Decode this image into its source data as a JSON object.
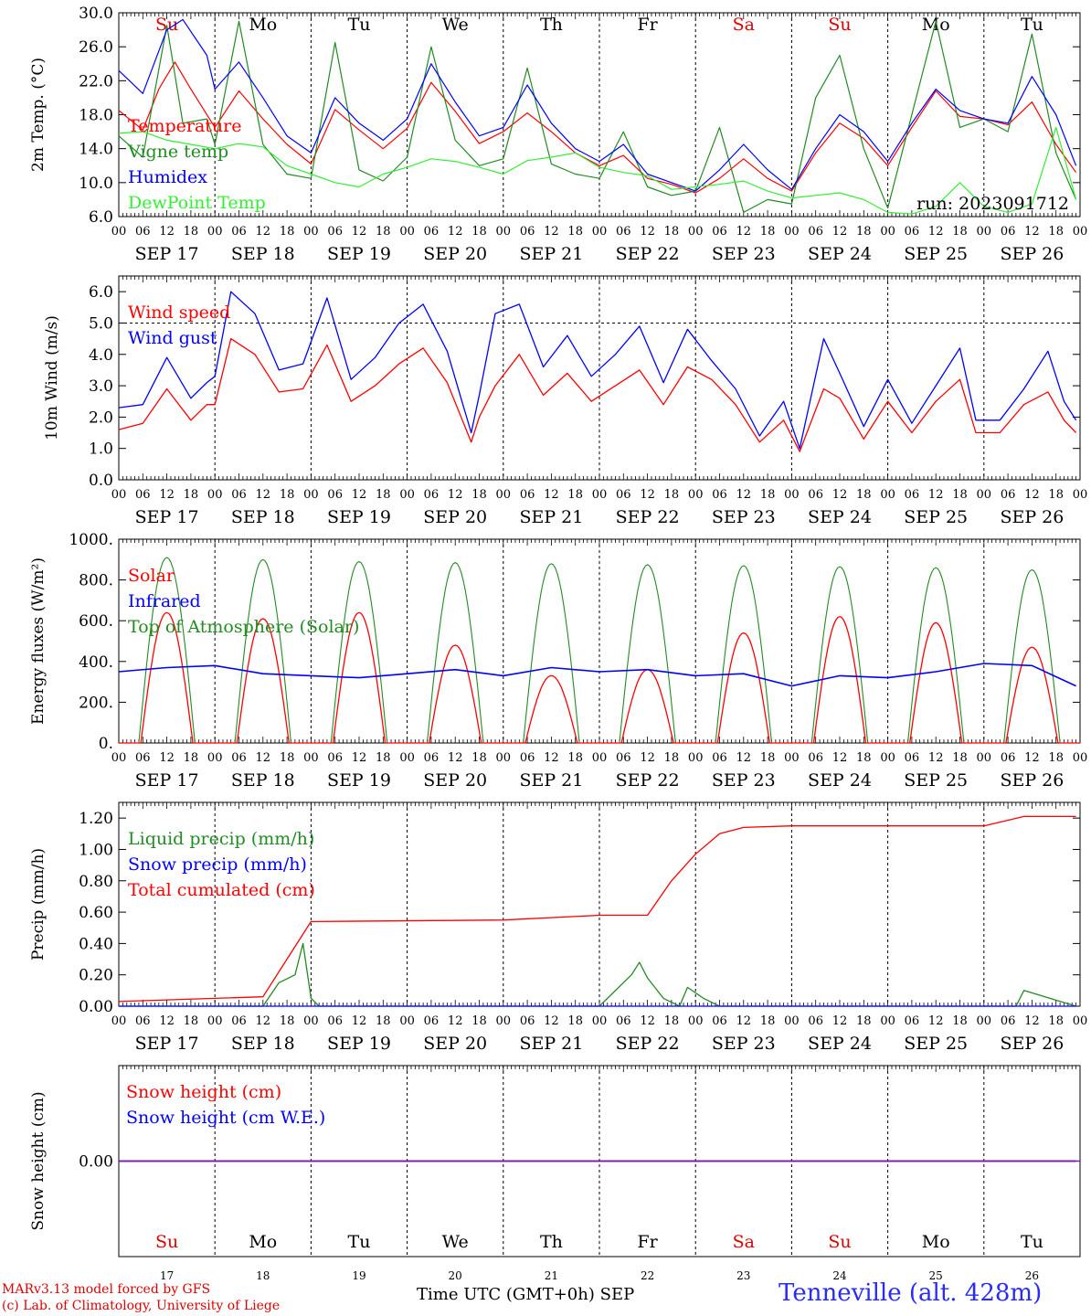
{
  "chart_data": [
    {
      "type": "line",
      "ylabel": "2m Temp. (°C)",
      "ylim": [
        6.0,
        30.0
      ],
      "yticks": [
        "6.0",
        "10.0",
        "14.0",
        "18.0",
        "22.0",
        "26.0",
        "30.0"
      ],
      "hours": [
        "00",
        "06",
        "12",
        "18"
      ],
      "dates": [
        "SEP 17",
        "SEP 18",
        "SEP 19",
        "SEP 20",
        "SEP 21",
        "SEP 22",
        "SEP 23",
        "SEP 24",
        "SEP 25",
        "SEP 26"
      ],
      "weekdays": [
        "Su",
        "Mo",
        "Tu",
        "We",
        "Th",
        "Fr",
        "Sa",
        "Su",
        "Mo",
        "Tu"
      ],
      "weekday_colors": [
        "#e00000",
        "#000000",
        "#000000",
        "#000000",
        "#000000",
        "#000000",
        "#e00000",
        "#e00000",
        "#000000",
        "#000000"
      ],
      "annotation": "run: 2023091712",
      "x_unit": "hours since 2023-09-17 00 UTC",
      "series": [
        {
          "name": "Temperature",
          "color": "#ff0000",
          "x": [
            0,
            6,
            10,
            14,
            18,
            24,
            30,
            36,
            42,
            48,
            54,
            60,
            66,
            72,
            78,
            84,
            90,
            96,
            102,
            108,
            114,
            120,
            126,
            132,
            138,
            144,
            150,
            156,
            162,
            168,
            174,
            180,
            186,
            192,
            198,
            204,
            210,
            216,
            222,
            228,
            234,
            239
          ],
          "values": [
            18.5,
            16.2,
            21.0,
            24.2,
            21.0,
            16.5,
            20.8,
            17.5,
            14.5,
            12.2,
            18.6,
            16.2,
            14.0,
            16.4,
            21.8,
            18.4,
            14.6,
            16.0,
            18.2,
            16.0,
            13.5,
            12.0,
            13.2,
            10.5,
            9.8,
            8.8,
            10.5,
            12.8,
            10.5,
            9.0,
            13.5,
            17.0,
            15.2,
            12.0,
            16.5,
            20.8,
            17.8,
            17.5,
            16.8,
            19.5,
            14.5,
            11.2
          ]
        },
        {
          "name": "Vigne temp",
          "color": "#228b22",
          "x": [
            0,
            6,
            12,
            16,
            22,
            24,
            30,
            36,
            42,
            48,
            54,
            60,
            66,
            72,
            78,
            84,
            90,
            96,
            102,
            108,
            114,
            120,
            126,
            132,
            138,
            144,
            150,
            156,
            162,
            168,
            174,
            180,
            186,
            192,
            198,
            204,
            210,
            216,
            222,
            228,
            234,
            239
          ],
          "values": [
            15.5,
            13.0,
            28.5,
            17.0,
            17.5,
            14.5,
            29.0,
            14.5,
            11.0,
            10.5,
            26.5,
            11.5,
            10.2,
            13.0,
            26.0,
            15.0,
            12.0,
            12.8,
            23.5,
            12.2,
            11.0,
            10.5,
            16.0,
            9.5,
            8.5,
            9.0,
            16.5,
            6.5,
            8.0,
            7.5,
            20.0,
            25.0,
            14.0,
            7.0,
            18.0,
            29.0,
            16.5,
            17.5,
            16.0,
            27.5,
            13.5,
            8.0
          ]
        },
        {
          "name": "Humidex",
          "color": "#0000ff",
          "x": [
            0,
            6,
            12,
            16,
            22,
            24,
            30,
            36,
            42,
            48,
            54,
            60,
            66,
            72,
            78,
            84,
            90,
            96,
            102,
            108,
            114,
            120,
            126,
            132,
            138,
            144,
            150,
            156,
            162,
            168,
            174,
            180,
            186,
            192,
            198,
            204,
            210,
            216,
            222,
            228,
            234,
            239
          ],
          "values": [
            23.2,
            20.5,
            28.0,
            29.2,
            25.0,
            21.0,
            24.2,
            20.0,
            15.5,
            13.5,
            20.0,
            17.0,
            15.0,
            17.5,
            24.0,
            19.5,
            15.5,
            16.5,
            21.5,
            17.0,
            14.0,
            12.5,
            14.5,
            11.0,
            10.0,
            9.0,
            11.5,
            14.5,
            11.5,
            9.2,
            14.0,
            18.0,
            16.0,
            12.5,
            17.0,
            21.0,
            18.5,
            17.5,
            17.0,
            22.5,
            18.0,
            12.0
          ]
        },
        {
          "name": "DewPoint Temp",
          "color": "#33ee33",
          "x": [
            0,
            6,
            12,
            18,
            24,
            30,
            36,
            42,
            48,
            54,
            60,
            66,
            72,
            78,
            84,
            90,
            96,
            102,
            108,
            114,
            120,
            126,
            132,
            138,
            144,
            150,
            156,
            162,
            168,
            174,
            180,
            186,
            192,
            198,
            204,
            210,
            216,
            222,
            228,
            234,
            239
          ],
          "values": [
            15.8,
            16.0,
            15.0,
            14.5,
            14.0,
            14.6,
            14.2,
            12.0,
            11.0,
            10.0,
            9.5,
            11.0,
            11.8,
            12.8,
            12.5,
            11.8,
            11.0,
            12.6,
            13.0,
            13.5,
            11.8,
            11.2,
            10.8,
            9.2,
            9.5,
            9.8,
            10.2,
            9.0,
            8.2,
            8.5,
            8.8,
            8.0,
            6.5,
            6.3,
            7.2,
            10.0,
            7.2,
            6.5,
            7.5,
            16.5,
            8.0
          ]
        }
      ]
    },
    {
      "type": "line",
      "ylabel": "10m Wind (m/s)",
      "ylim": [
        0.0,
        6.5
      ],
      "yticks": [
        "0.0",
        "1.0",
        "2.0",
        "3.0",
        "4.0",
        "5.0",
        "6.0"
      ],
      "reference_line": 5.0,
      "hours": [
        "00",
        "06",
        "12",
        "18"
      ],
      "dates": [
        "SEP 17",
        "SEP 18",
        "SEP 19",
        "SEP 20",
        "SEP 21",
        "SEP 22",
        "SEP 23",
        "SEP 24",
        "SEP 25",
        "SEP 26"
      ],
      "series": [
        {
          "name": "Wind speed",
          "color": "#ff0000",
          "x": [
            0,
            6,
            12,
            18,
            22,
            24,
            28,
            34,
            40,
            46,
            52,
            58,
            64,
            70,
            76,
            82,
            88,
            90,
            94,
            100,
            106,
            112,
            118,
            124,
            130,
            136,
            142,
            148,
            154,
            160,
            166,
            170,
            176,
            180,
            186,
            192,
            198,
            204,
            210,
            214,
            220,
            226,
            232,
            236,
            239
          ],
          "values": [
            1.6,
            1.8,
            2.9,
            1.9,
            2.4,
            2.4,
            4.5,
            4.0,
            2.8,
            2.9,
            4.3,
            2.5,
            3.0,
            3.7,
            4.2,
            3.1,
            1.2,
            2.0,
            3.0,
            4.0,
            2.7,
            3.4,
            2.5,
            3.0,
            3.5,
            2.4,
            3.6,
            3.2,
            2.4,
            1.2,
            1.9,
            0.9,
            2.9,
            2.6,
            1.3,
            2.5,
            1.5,
            2.5,
            3.2,
            1.5,
            1.5,
            2.4,
            2.8,
            1.9,
            1.5
          ]
        },
        {
          "name": "Wind gust",
          "color": "#0000ff",
          "x": [
            0,
            6,
            12,
            18,
            22,
            24,
            28,
            34,
            40,
            46,
            52,
            58,
            64,
            70,
            76,
            82,
            88,
            90,
            94,
            100,
            106,
            112,
            118,
            124,
            130,
            136,
            142,
            148,
            154,
            160,
            166,
            170,
            176,
            180,
            186,
            192,
            198,
            204,
            210,
            214,
            220,
            226,
            232,
            236,
            239
          ],
          "values": [
            2.3,
            2.4,
            3.9,
            2.6,
            3.1,
            3.3,
            6.0,
            5.3,
            3.5,
            3.7,
            5.8,
            3.2,
            3.9,
            5.0,
            5.6,
            4.1,
            1.5,
            2.7,
            5.3,
            5.6,
            3.6,
            4.6,
            3.3,
            4.0,
            4.9,
            3.1,
            4.8,
            3.8,
            2.9,
            1.4,
            2.5,
            1.0,
            4.5,
            3.4,
            1.7,
            3.2,
            1.8,
            3.0,
            4.2,
            1.9,
            1.9,
            2.9,
            4.1,
            2.5,
            1.9
          ]
        }
      ]
    },
    {
      "type": "line",
      "ylabel": "Energy fluxes (W/m²)",
      "ylim": [
        0,
        1000
      ],
      "yticks": [
        "0.",
        "200.",
        "400.",
        "600.",
        "800.",
        "1000."
      ],
      "hours": [
        "00",
        "06",
        "12",
        "18"
      ],
      "dates": [
        "SEP 17",
        "SEP 18",
        "SEP 19",
        "SEP 20",
        "SEP 21",
        "SEP 22",
        "SEP 23",
        "SEP 24",
        "SEP 25",
        "SEP 26"
      ],
      "daily_solar_peak": [
        640,
        610,
        640,
        480,
        330,
        360,
        540,
        620,
        590,
        470
      ],
      "daily_toa_peak": [
        910,
        900,
        890,
        885,
        880,
        875,
        870,
        865,
        860,
        850
      ],
      "series": [
        {
          "name": "Solar",
          "color": "#ff0000"
        },
        {
          "name": "Infrared",
          "color": "#0000ff",
          "x": [
            0,
            12,
            24,
            36,
            48,
            60,
            72,
            84,
            96,
            108,
            120,
            132,
            144,
            156,
            168,
            180,
            192,
            204,
            216,
            228,
            239
          ],
          "values": [
            350,
            370,
            380,
            340,
            330,
            320,
            340,
            360,
            330,
            370,
            350,
            360,
            330,
            340,
            280,
            330,
            320,
            350,
            390,
            380,
            280
          ]
        },
        {
          "name": "Top of Atmosphere (Solar)",
          "color": "#228b22"
        }
      ]
    },
    {
      "type": "line",
      "ylabel": "Precip (mm/h)",
      "ylim": [
        0.0,
        1.3
      ],
      "yticks": [
        "0.00",
        "0.20",
        "0.40",
        "0.60",
        "0.80",
        "1.00",
        "1.20"
      ],
      "hours": [
        "00",
        "06",
        "12",
        "18"
      ],
      "dates": [
        "SEP 17",
        "SEP 18",
        "SEP 19",
        "SEP 20",
        "SEP 21",
        "SEP 22",
        "SEP 23",
        "SEP 24",
        "SEP 25",
        "SEP 26"
      ],
      "series": [
        {
          "name": "Liquid precip (mm/h)",
          "color": "#228b22",
          "x": [
            0,
            36,
            40,
            44,
            46,
            48,
            50,
            120,
            122,
            128,
            130,
            132,
            136,
            140,
            142,
            146,
            150,
            224,
            226,
            239
          ],
          "values": [
            0.0,
            0.0,
            0.15,
            0.2,
            0.4,
            0.05,
            0.0,
            0.0,
            0.05,
            0.2,
            0.28,
            0.18,
            0.05,
            0.0,
            0.12,
            0.05,
            0.0,
            0.0,
            0.1,
            0.0
          ]
        },
        {
          "name": "Snow precip (mm/h)",
          "color": "#0000ff",
          "x": [
            0,
            239
          ],
          "values": [
            0.0,
            0.0
          ]
        },
        {
          "name": "Total cumulated (cm)",
          "color": "#ff0000",
          "x": [
            0,
            24,
            36,
            42,
            48,
            96,
            120,
            132,
            138,
            144,
            150,
            156,
            168,
            216,
            226,
            239
          ],
          "values": [
            0.03,
            0.05,
            0.06,
            0.3,
            0.54,
            0.55,
            0.58,
            0.58,
            0.8,
            0.97,
            1.1,
            1.14,
            1.15,
            1.15,
            1.21,
            1.21
          ]
        }
      ]
    },
    {
      "type": "line",
      "ylabel": "Snow height (cm)",
      "ylim": [
        -1.0,
        1.0
      ],
      "yticks": [
        "0.00"
      ],
      "weekdays": [
        "Su",
        "Mo",
        "Tu",
        "We",
        "Th",
        "Fr",
        "Sa",
        "Su",
        "Mo",
        "Tu"
      ],
      "weekday_colors": [
        "#e00000",
        "#000000",
        "#000000",
        "#000000",
        "#000000",
        "#000000",
        "#e00000",
        "#e00000",
        "#000000",
        "#000000"
      ],
      "daynums": [
        "17",
        "18",
        "19",
        "20",
        "21",
        "22",
        "23",
        "24",
        "25",
        "26"
      ],
      "xlabel": "Time UTC (GMT+0h)",
      "xlabel_month": "SEP",
      "series": [
        {
          "name": "Snow height (cm)",
          "color": "#ff0000",
          "x": [
            0,
            239
          ],
          "values": [
            0.0,
            0.0
          ]
        },
        {
          "name": "Snow height (cm W.E.)",
          "color": "#0000ff",
          "x": [
            0,
            239
          ],
          "values": [
            0.0,
            0.0
          ]
        }
      ]
    }
  ],
  "footer": {
    "model_line": "MARv3.13 model forced by GFS",
    "credit_line": "(c) Lab. of Climatology, University of Liege",
    "time_label": "Time UTC (GMT+0h)",
    "month_label": "SEP",
    "station": "Tenneville (alt. 428m)"
  }
}
